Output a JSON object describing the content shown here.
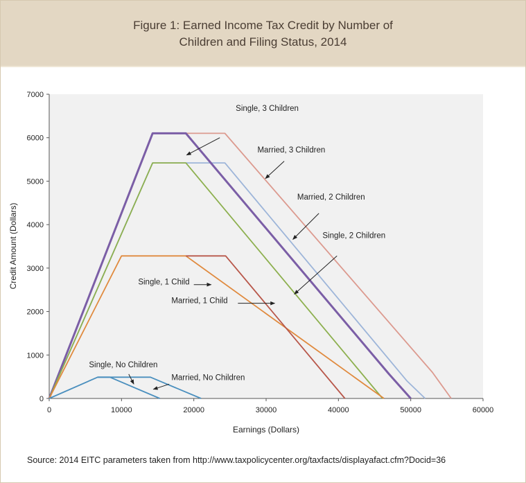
{
  "figure": {
    "title_line1": "Figure 1: Earned Income Tax Credit by Number of",
    "title_line2": "Children and Filing Status, 2014",
    "source": "Source: 2014 EITC parameters taken from http://www.taxpolicycenter.org/taxfacts/displayafact.cfm?Docid=36"
  },
  "chart_data": {
    "type": "line",
    "title": "Figure 1: Earned Income Tax Credit by Number of Children and Filing Status, 2014",
    "xlabel": "Earnings (Dollars)",
    "ylabel": "Credit Amount (Dollars)",
    "xlim": [
      0,
      60000
    ],
    "ylim": [
      0,
      7000
    ],
    "xticks": [
      0,
      10000,
      20000,
      30000,
      40000,
      50000,
      60000
    ],
    "yticks": [
      0,
      1000,
      2000,
      3000,
      4000,
      5000,
      6000,
      7000
    ],
    "grid": false,
    "plot_background": "#f1f1f1",
    "series": [
      {
        "name": "Married, 3 Children",
        "color": "#dc9a8f",
        "x": [
          0,
          14300,
          24300,
          53000,
          55600
        ],
        "y": [
          0,
          6100,
          6100,
          600,
          0
        ]
      },
      {
        "name": "Married, 2 Children",
        "color": "#9db5d9",
        "x": [
          0,
          14300,
          24300,
          49500,
          52000
        ],
        "y": [
          0,
          5420,
          5420,
          400,
          0
        ]
      },
      {
        "name": "Single, 3 Children",
        "color": "#7b5ea6",
        "x": [
          0,
          14300,
          18900,
          47000,
          50000
        ],
        "y": [
          0,
          6100,
          6100,
          560,
          0
        ]
      },
      {
        "name": "Single, 2 Children",
        "color": "#8db04f",
        "x": [
          0,
          14300,
          18900,
          46100
        ],
        "y": [
          0,
          5420,
          5420,
          0
        ]
      },
      {
        "name": "Single, 1 Child",
        "color": "#e08a3e",
        "x": [
          0,
          10000,
          18900,
          46300
        ],
        "y": [
          0,
          3280,
          3280,
          0
        ]
      },
      {
        "name": "Married, 1 Child",
        "color": "#b8574a",
        "x": [
          18900,
          24400,
          40900
        ],
        "y": [
          3280,
          3280,
          0
        ]
      },
      {
        "name": "Single, No Children",
        "color": "#4a8fbe",
        "x": [
          0,
          6700,
          8400,
          15300
        ],
        "y": [
          0,
          490,
          490,
          0
        ]
      },
      {
        "name": "Married, No Children",
        "color": "#4a8fbe",
        "x": [
          6700,
          14000,
          21000
        ],
        "y": [
          490,
          490,
          0
        ]
      }
    ],
    "annotations": [
      {
        "text": "Single, 3 Children",
        "label_at": [
          25800,
          6620
        ],
        "arrow_from": [
          23600,
          6000
        ],
        "arrow_to": [
          19000,
          5600
        ]
      },
      {
        "text": "Married, 3 Children",
        "label_at": [
          28800,
          5660
        ],
        "arrow_from": [
          32500,
          5460
        ],
        "arrow_to": [
          29900,
          5060
        ]
      },
      {
        "text": "Married, 2 Children",
        "label_at": [
          34300,
          4580
        ],
        "arrow_from": [
          37300,
          4260
        ],
        "arrow_to": [
          33700,
          3660
        ]
      },
      {
        "text": "Single, 2 Children",
        "label_at": [
          37800,
          3690
        ],
        "arrow_from": [
          39800,
          3280
        ],
        "arrow_to": [
          33900,
          2400
        ]
      },
      {
        "text": "Single, 1 Child",
        "label_at": [
          12300,
          2620
        ],
        "arrow_from": [
          20000,
          2620
        ],
        "arrow_to": [
          22400,
          2620
        ]
      },
      {
        "text": "Married, 1 Child",
        "label_at": [
          16900,
          2190
        ],
        "arrow_from": [
          26100,
          2190
        ],
        "arrow_to": [
          31200,
          2190
        ]
      },
      {
        "text": "Single, No Children",
        "label_at": [
          5500,
          720
        ],
        "arrow_from": [
          11000,
          560
        ],
        "arrow_to": [
          11700,
          330
        ]
      },
      {
        "text": "Married, No Children",
        "label_at": [
          16900,
          420
        ],
        "arrow_from": [
          16600,
          330
        ],
        "arrow_to": [
          14400,
          210
        ]
      }
    ]
  }
}
